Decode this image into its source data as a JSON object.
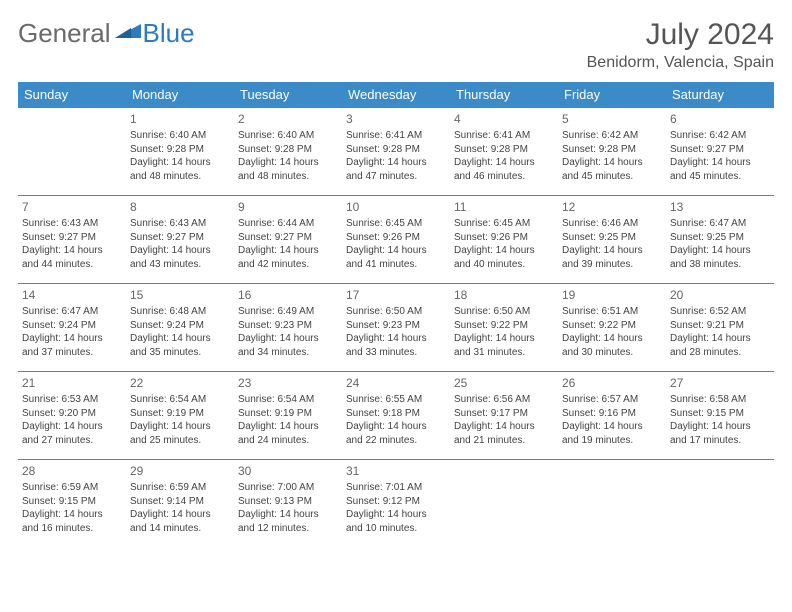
{
  "brand": {
    "part1": "General",
    "part2": "Blue"
  },
  "title": "July 2024",
  "location": "Benidorm, Valencia, Spain",
  "colors": {
    "header_bg": "#3b8bc9",
    "header_text": "#ffffff",
    "border": "#3b8bc9",
    "logo_gray": "#6a6a6a",
    "logo_blue": "#2b7bbf",
    "body_text": "#444444"
  },
  "headers": [
    "Sunday",
    "Monday",
    "Tuesday",
    "Wednesday",
    "Thursday",
    "Friday",
    "Saturday"
  ],
  "weeks": [
    [
      null,
      {
        "n": "1",
        "sr": "6:40 AM",
        "ss": "9:28 PM",
        "dl": "14 hours and 48 minutes."
      },
      {
        "n": "2",
        "sr": "6:40 AM",
        "ss": "9:28 PM",
        "dl": "14 hours and 48 minutes."
      },
      {
        "n": "3",
        "sr": "6:41 AM",
        "ss": "9:28 PM",
        "dl": "14 hours and 47 minutes."
      },
      {
        "n": "4",
        "sr": "6:41 AM",
        "ss": "9:28 PM",
        "dl": "14 hours and 46 minutes."
      },
      {
        "n": "5",
        "sr": "6:42 AM",
        "ss": "9:28 PM",
        "dl": "14 hours and 45 minutes."
      },
      {
        "n": "6",
        "sr": "6:42 AM",
        "ss": "9:27 PM",
        "dl": "14 hours and 45 minutes."
      }
    ],
    [
      {
        "n": "7",
        "sr": "6:43 AM",
        "ss": "9:27 PM",
        "dl": "14 hours and 44 minutes."
      },
      {
        "n": "8",
        "sr": "6:43 AM",
        "ss": "9:27 PM",
        "dl": "14 hours and 43 minutes."
      },
      {
        "n": "9",
        "sr": "6:44 AM",
        "ss": "9:27 PM",
        "dl": "14 hours and 42 minutes."
      },
      {
        "n": "10",
        "sr": "6:45 AM",
        "ss": "9:26 PM",
        "dl": "14 hours and 41 minutes."
      },
      {
        "n": "11",
        "sr": "6:45 AM",
        "ss": "9:26 PM",
        "dl": "14 hours and 40 minutes."
      },
      {
        "n": "12",
        "sr": "6:46 AM",
        "ss": "9:25 PM",
        "dl": "14 hours and 39 minutes."
      },
      {
        "n": "13",
        "sr": "6:47 AM",
        "ss": "9:25 PM",
        "dl": "14 hours and 38 minutes."
      }
    ],
    [
      {
        "n": "14",
        "sr": "6:47 AM",
        "ss": "9:24 PM",
        "dl": "14 hours and 37 minutes."
      },
      {
        "n": "15",
        "sr": "6:48 AM",
        "ss": "9:24 PM",
        "dl": "14 hours and 35 minutes."
      },
      {
        "n": "16",
        "sr": "6:49 AM",
        "ss": "9:23 PM",
        "dl": "14 hours and 34 minutes."
      },
      {
        "n": "17",
        "sr": "6:50 AM",
        "ss": "9:23 PM",
        "dl": "14 hours and 33 minutes."
      },
      {
        "n": "18",
        "sr": "6:50 AM",
        "ss": "9:22 PM",
        "dl": "14 hours and 31 minutes."
      },
      {
        "n": "19",
        "sr": "6:51 AM",
        "ss": "9:22 PM",
        "dl": "14 hours and 30 minutes."
      },
      {
        "n": "20",
        "sr": "6:52 AM",
        "ss": "9:21 PM",
        "dl": "14 hours and 28 minutes."
      }
    ],
    [
      {
        "n": "21",
        "sr": "6:53 AM",
        "ss": "9:20 PM",
        "dl": "14 hours and 27 minutes."
      },
      {
        "n": "22",
        "sr": "6:54 AM",
        "ss": "9:19 PM",
        "dl": "14 hours and 25 minutes."
      },
      {
        "n": "23",
        "sr": "6:54 AM",
        "ss": "9:19 PM",
        "dl": "14 hours and 24 minutes."
      },
      {
        "n": "24",
        "sr": "6:55 AM",
        "ss": "9:18 PM",
        "dl": "14 hours and 22 minutes."
      },
      {
        "n": "25",
        "sr": "6:56 AM",
        "ss": "9:17 PM",
        "dl": "14 hours and 21 minutes."
      },
      {
        "n": "26",
        "sr": "6:57 AM",
        "ss": "9:16 PM",
        "dl": "14 hours and 19 minutes."
      },
      {
        "n": "27",
        "sr": "6:58 AM",
        "ss": "9:15 PM",
        "dl": "14 hours and 17 minutes."
      }
    ],
    [
      {
        "n": "28",
        "sr": "6:59 AM",
        "ss": "9:15 PM",
        "dl": "14 hours and 16 minutes."
      },
      {
        "n": "29",
        "sr": "6:59 AM",
        "ss": "9:14 PM",
        "dl": "14 hours and 14 minutes."
      },
      {
        "n": "30",
        "sr": "7:00 AM",
        "ss": "9:13 PM",
        "dl": "14 hours and 12 minutes."
      },
      {
        "n": "31",
        "sr": "7:01 AM",
        "ss": "9:12 PM",
        "dl": "14 hours and 10 minutes."
      },
      null,
      null,
      null
    ]
  ],
  "labels": {
    "sunrise": "Sunrise:",
    "sunset": "Sunset:",
    "daylight": "Daylight:"
  }
}
